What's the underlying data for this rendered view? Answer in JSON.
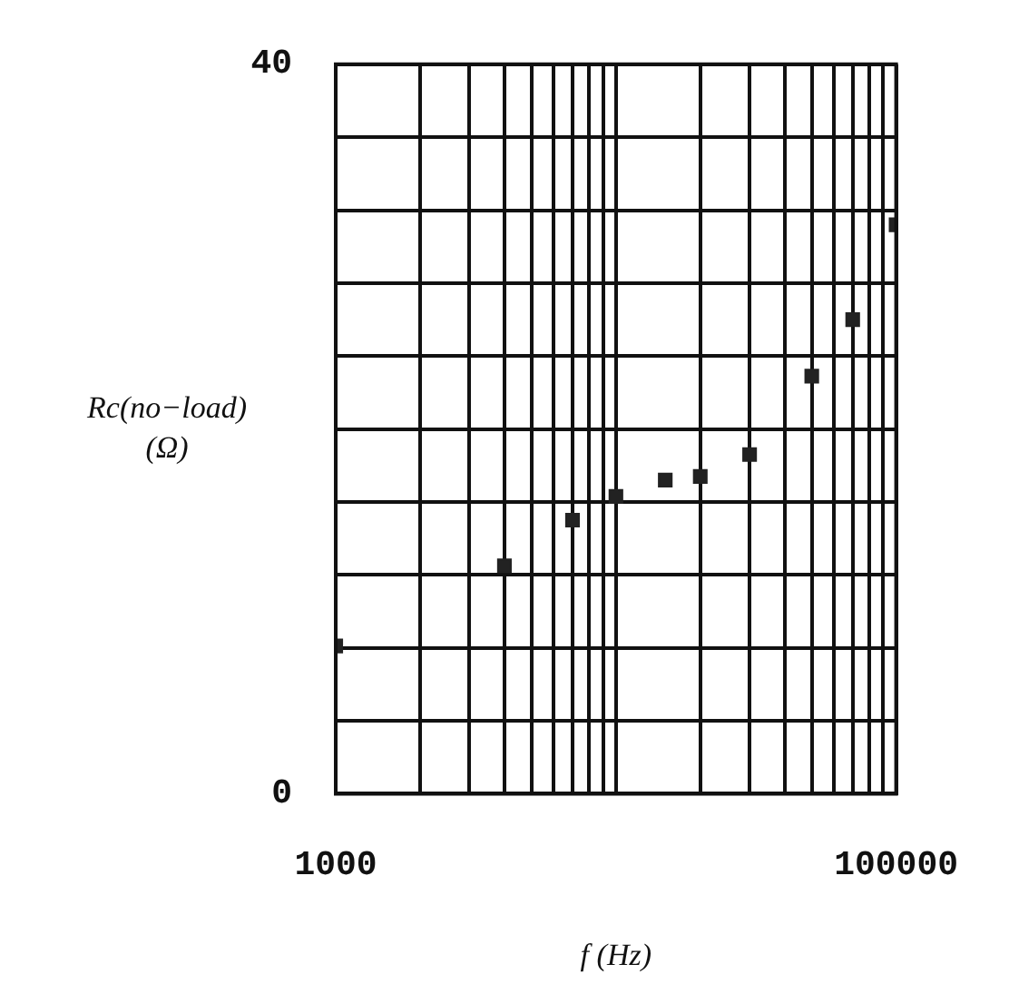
{
  "chart_data": {
    "type": "scatter",
    "xlabel": "f (Hz)",
    "ylabel": "Rc(no−load)\n(Ω)",
    "log": "x",
    "grid": true,
    "marker": "square",
    "xlim": [
      1000,
      100000
    ],
    "xticks": [
      1000,
      {
        "value": 2000,
        "label": null
      },
      {
        "value": 3000,
        "label": null
      },
      {
        "value": 4000,
        "label": null
      },
      {
        "value": 5000,
        "label": null
      },
      {
        "value": 6000,
        "label": null
      },
      {
        "value": 7000,
        "label": null
      },
      {
        "value": 8000,
        "label": null
      },
      {
        "value": 9000,
        "label": null
      },
      {
        "value": 10000,
        "label": null
      },
      {
        "value": 20000,
        "label": null
      },
      {
        "value": 30000,
        "label": null
      },
      {
        "value": 40000,
        "label": null
      },
      {
        "value": 50000,
        "label": null
      },
      {
        "value": 60000,
        "label": null
      },
      {
        "value": 70000,
        "label": null
      },
      {
        "value": 80000,
        "label": null
      },
      {
        "value": 90000,
        "label": null
      },
      100000
    ],
    "ylim": [
      0,
      40
    ],
    "yticks": [
      0,
      {
        "value": 4,
        "label": null
      },
      {
        "value": 8,
        "label": null
      },
      {
        "value": 12,
        "label": null
      },
      {
        "value": 16,
        "label": null
      },
      {
        "value": 20,
        "label": null
      },
      {
        "value": 24,
        "label": null
      },
      {
        "value": 28,
        "label": null
      },
      {
        "value": 32,
        "label": null
      },
      {
        "value": 36,
        "label": null
      },
      40
    ],
    "series": [
      {
        "color": "#222222",
        "x": [
          1000,
          4000,
          7000,
          10000,
          15000,
          20000,
          30000,
          50000,
          70000,
          100000
        ],
        "values": [
          8.1,
          12.5,
          15.0,
          16.3,
          17.2,
          17.4,
          18.6,
          22.9,
          26.0,
          31.2
        ]
      }
    ]
  }
}
